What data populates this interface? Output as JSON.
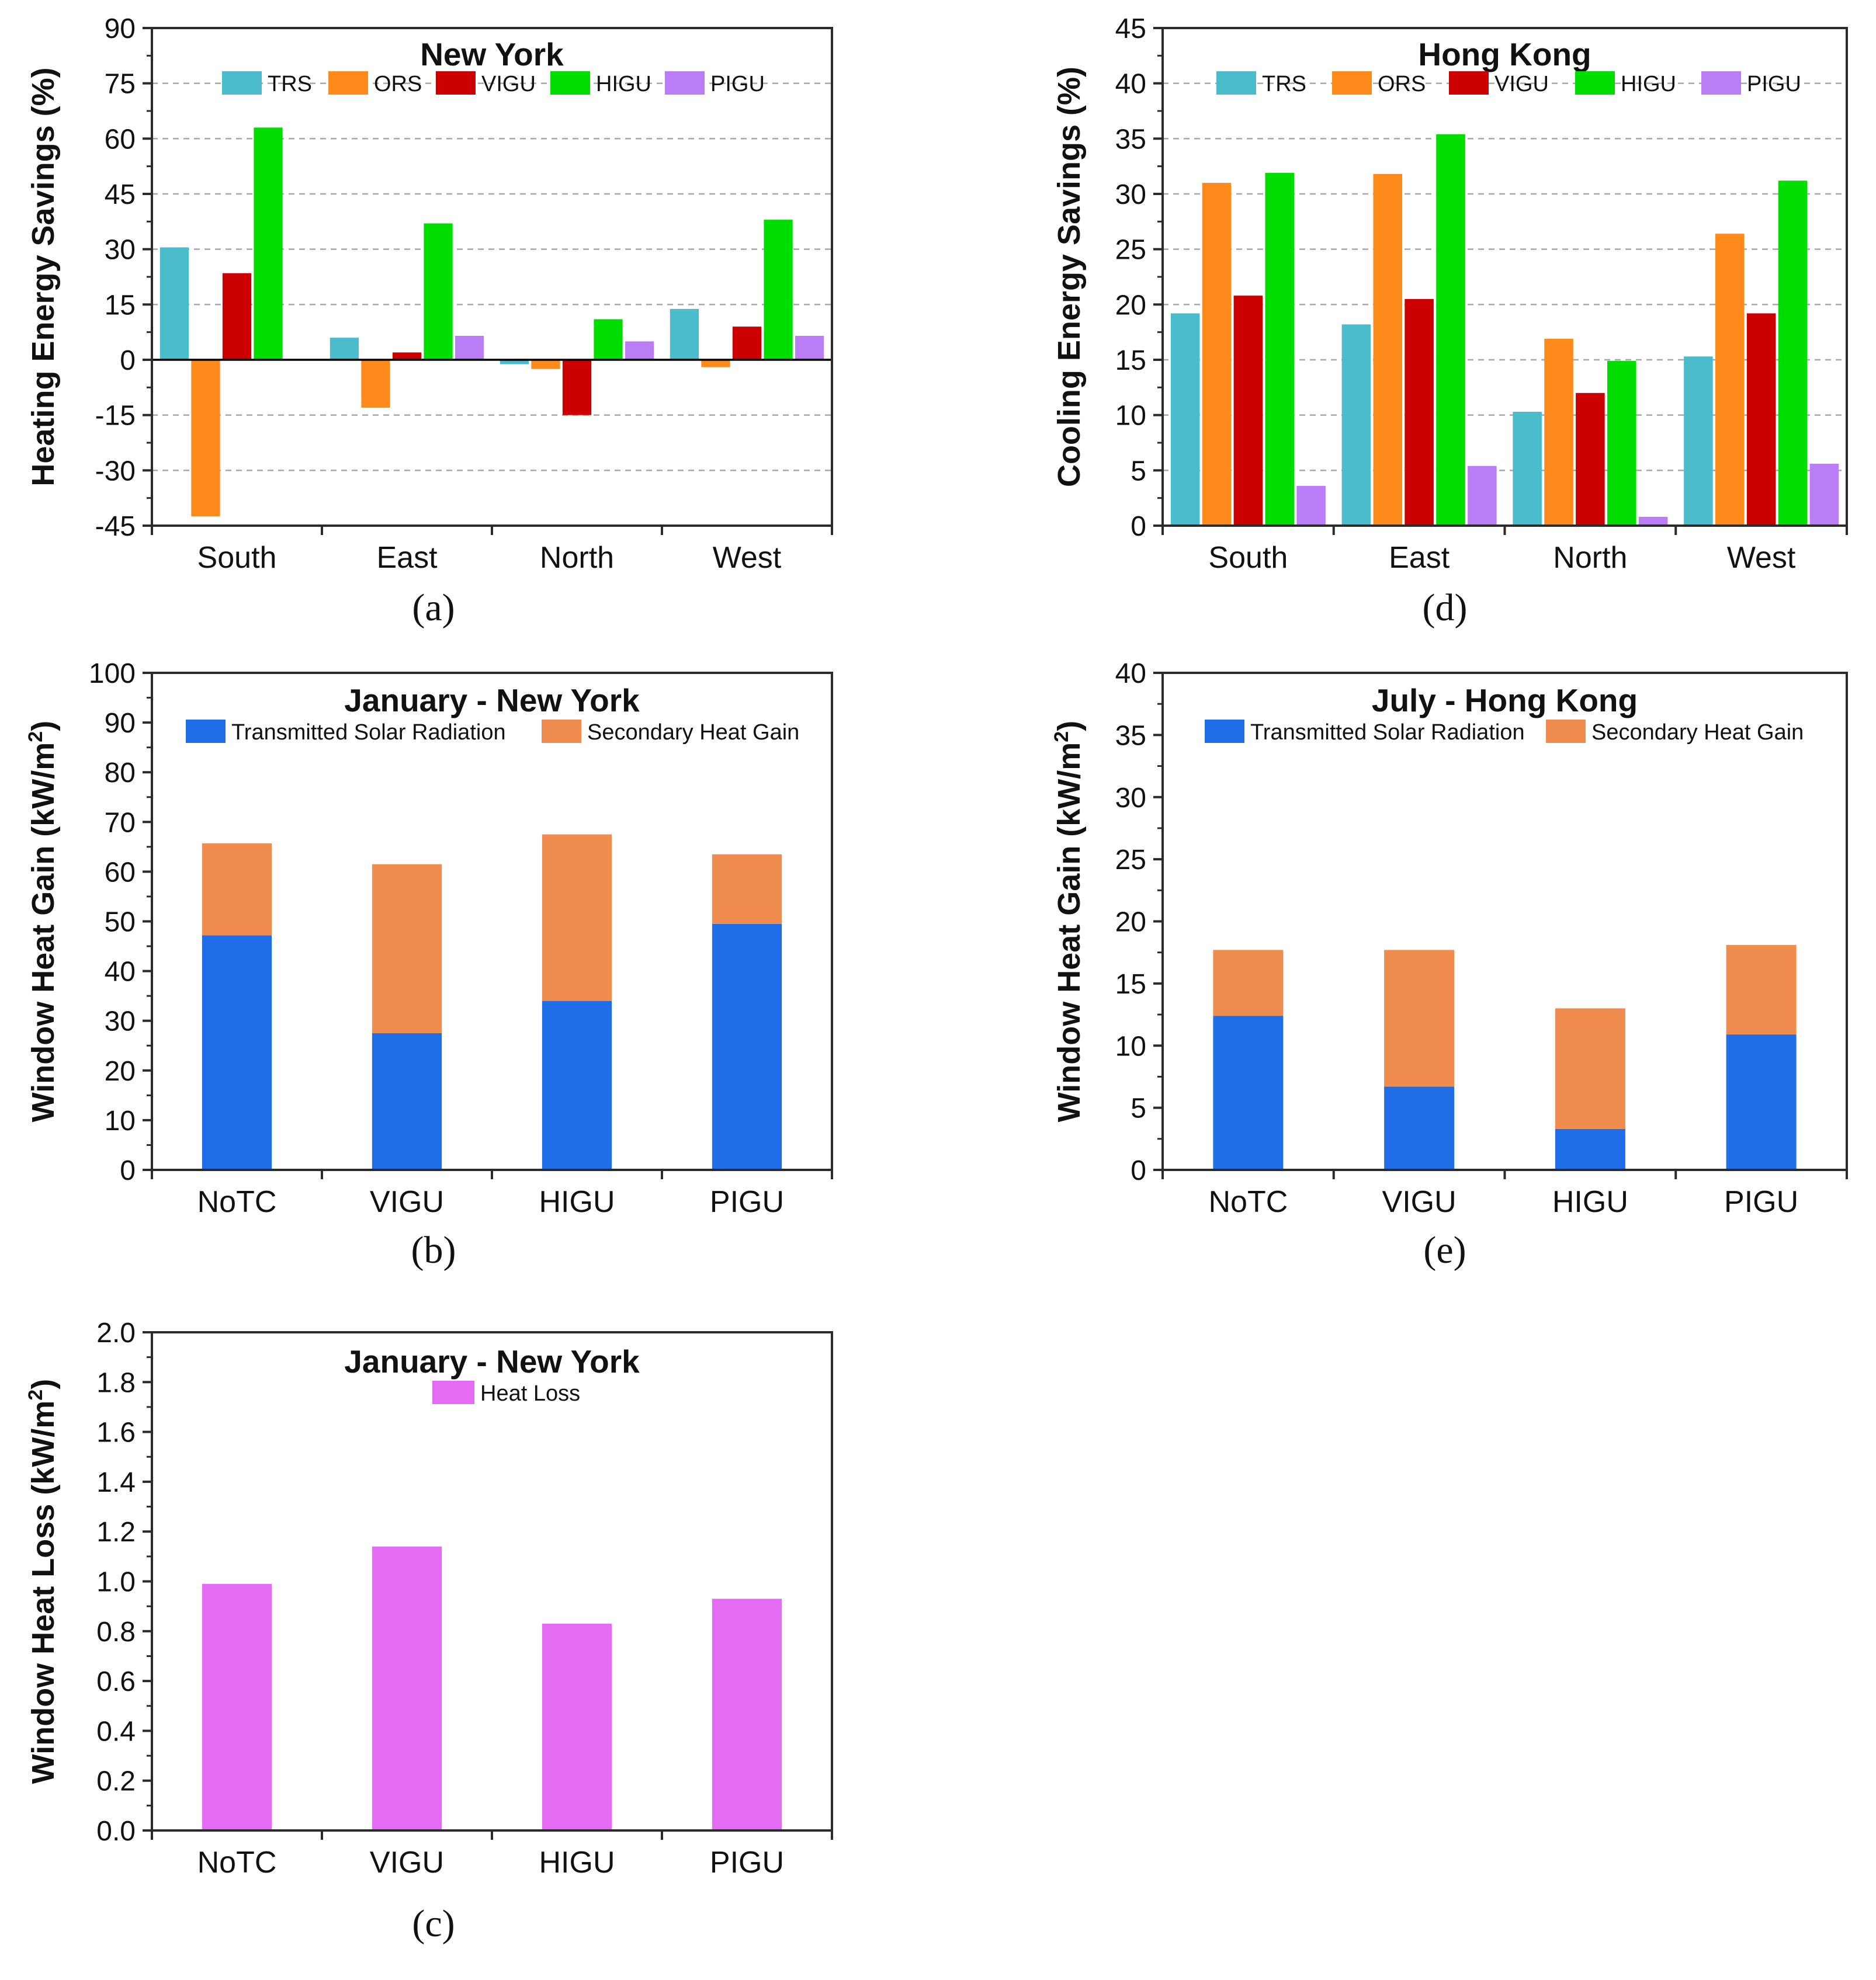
{
  "chart_data": [
    {
      "id": "a",
      "type": "bar",
      "panel_label": "(a)",
      "title": "New York",
      "ylabel": "Heating Energy Savings (%)",
      "xlabel": "",
      "categories": [
        "South",
        "East",
        "North",
        "West"
      ],
      "ylim": [
        -45,
        90
      ],
      "yticks": [
        "-45",
        "-30",
        "-15",
        "0",
        "15",
        "30",
        "45",
        "60",
        "75",
        "90"
      ],
      "grid": "horizontal-dashed",
      "legend": "top",
      "series": [
        {
          "name": "TRS",
          "color": "#4bbccc",
          "values": [
            30.5,
            6.0,
            -1.2,
            13.8
          ]
        },
        {
          "name": "ORS",
          "color": "#ff8a1c",
          "values": [
            -42.5,
            -13.0,
            -2.5,
            -2.0
          ]
        },
        {
          "name": "VIGU",
          "color": "#cc0000",
          "values": [
            23.5,
            2.0,
            -15.0,
            9.0
          ]
        },
        {
          "name": "HIGU",
          "color": "#00dd00",
          "values": [
            63.0,
            37.0,
            11.0,
            38.0
          ]
        },
        {
          "name": "PIGU",
          "color": "#bb7df5",
          "values": [
            0,
            6.5,
            5.0,
            6.5
          ]
        }
      ]
    },
    {
      "id": "d",
      "type": "bar",
      "panel_label": "(d)",
      "title": "Hong Kong",
      "ylabel": "Cooling Energy Savings (%)",
      "xlabel": "",
      "categories": [
        "South",
        "East",
        "North",
        "West"
      ],
      "ylim": [
        0,
        45
      ],
      "yticks": [
        "0",
        "5",
        "10",
        "15",
        "20",
        "25",
        "30",
        "35",
        "40",
        "45"
      ],
      "grid": "horizontal-dashed",
      "legend": "top",
      "series": [
        {
          "name": "TRS",
          "color": "#4bbccc",
          "values": [
            19.2,
            18.2,
            10.3,
            15.3
          ]
        },
        {
          "name": "ORS",
          "color": "#ff8a1c",
          "values": [
            31.0,
            31.8,
            16.9,
            26.4
          ]
        },
        {
          "name": "VIGU",
          "color": "#cc0000",
          "values": [
            20.8,
            20.5,
            12.0,
            19.2
          ]
        },
        {
          "name": "HIGU",
          "color": "#00dd00",
          "values": [
            31.9,
            35.4,
            14.9,
            31.2
          ]
        },
        {
          "name": "PIGU",
          "color": "#bb7df5",
          "values": [
            3.6,
            5.4,
            0.8,
            5.6
          ]
        }
      ]
    },
    {
      "id": "b",
      "type": "bar",
      "stacked": true,
      "panel_label": "(b)",
      "title": "January - New York",
      "ylabel_main": "Window Heat Gain (kW/m",
      "ylabel_sup": "2",
      "ylabel_end": ")",
      "xlabel": "",
      "categories": [
        "NoTC",
        "VIGU",
        "HIGU",
        "PIGU"
      ],
      "ylim": [
        0,
        100
      ],
      "yticks": [
        "0",
        "10",
        "20",
        "30",
        "40",
        "50",
        "60",
        "70",
        "80",
        "90",
        "100"
      ],
      "grid": "off",
      "legend": "top",
      "series": [
        {
          "name": "Transmitted Solar Radiation",
          "color": "#1f6ee8",
          "values": [
            47.2,
            27.5,
            34.0,
            49.5
          ]
        },
        {
          "name": "Secondary Heat Gain",
          "color": "#ef8c4e",
          "values": [
            18.5,
            34.0,
            33.5,
            14.0
          ]
        }
      ]
    },
    {
      "id": "e",
      "type": "bar",
      "stacked": true,
      "panel_label": "(e)",
      "title": "July - Hong Kong",
      "ylabel_main": "Window Heat Gain (kW/m",
      "ylabel_sup": "2",
      "ylabel_end": ")",
      "xlabel": "",
      "categories": [
        "NoTC",
        "VIGU",
        "HIGU",
        "PIGU"
      ],
      "ylim": [
        0,
        40
      ],
      "yticks": [
        "0",
        "5",
        "10",
        "15",
        "20",
        "25",
        "30",
        "35",
        "40"
      ],
      "grid": "off",
      "legend": "top",
      "series": [
        {
          "name": "Transmitted Solar Radiation",
          "color": "#1f6ee8",
          "values": [
            12.4,
            6.7,
            3.3,
            10.9
          ]
        },
        {
          "name": "Secondary Heat Gain",
          "color": "#ef8c4e",
          "values": [
            5.3,
            11.0,
            9.7,
            7.2
          ]
        }
      ]
    },
    {
      "id": "c",
      "type": "bar",
      "panel_label": "(c)",
      "title": "January - New York",
      "ylabel_main": "Window Heat Loss (kW/m",
      "ylabel_sup": "2",
      "ylabel_end": ")",
      "xlabel": "",
      "categories": [
        "NoTC",
        "VIGU",
        "HIGU",
        "PIGU"
      ],
      "ylim": [
        0,
        2.0
      ],
      "yticks": [
        "0.0",
        "0.2",
        "0.4",
        "0.6",
        "0.8",
        "1.0",
        "1.2",
        "1.4",
        "1.6",
        "1.8",
        "2.0"
      ],
      "grid": "off",
      "legend": "top",
      "series": [
        {
          "name": "Heat Loss",
          "color": "#e46cf5",
          "values": [
            0.99,
            1.14,
            0.83,
            0.93
          ]
        }
      ]
    }
  ]
}
